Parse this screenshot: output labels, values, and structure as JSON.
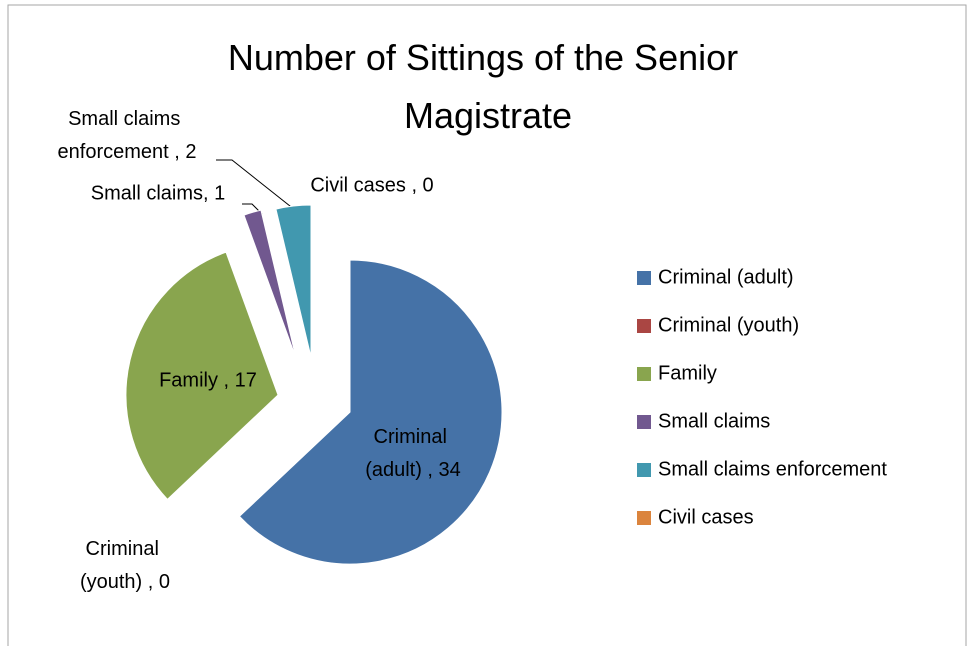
{
  "chart_data": {
    "type": "pie",
    "title": "Number of Sittings of the Senior Magistrate",
    "categories": [
      "Criminal (adult)",
      "Criminal (youth)",
      "Family",
      "Small claims",
      "Small claims enforcement",
      "Civil cases"
    ],
    "values": [
      34,
      0,
      17,
      1,
      2,
      0
    ],
    "value_labels": [
      "Criminal (adult) , 34",
      "Criminal (youth) , 0",
      "Family , 17",
      "Small claims, 1",
      "Small claims enforcement , 2",
      "Civil cases , 0"
    ],
    "colors": [
      "#4572A7",
      "#AA4643",
      "#89A54E",
      "#71588F",
      "#4198AF",
      "#DB843D"
    ],
    "legend": "right"
  }
}
